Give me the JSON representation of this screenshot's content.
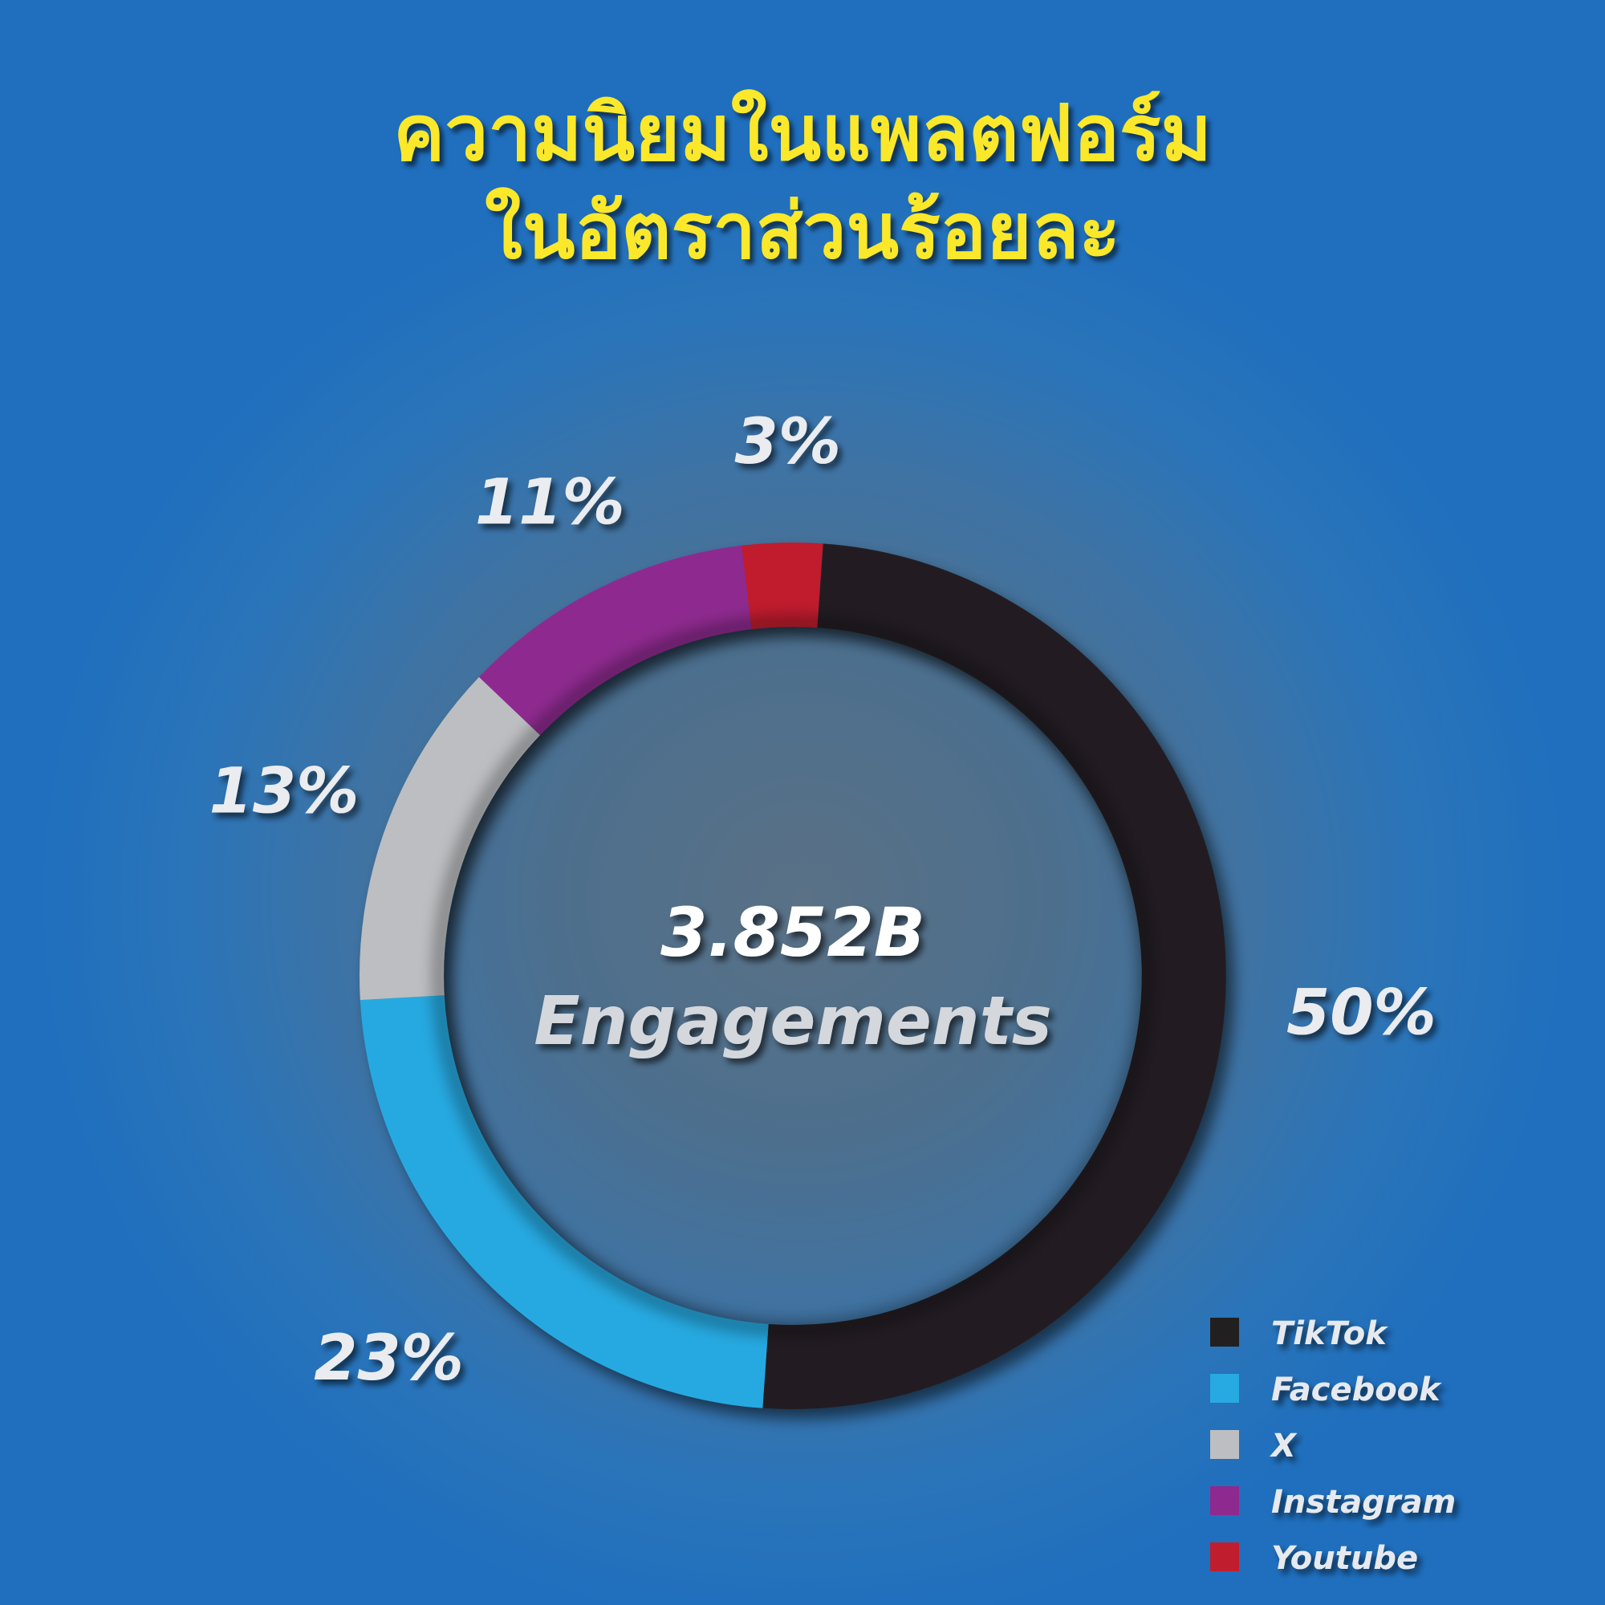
{
  "chart_data": {
    "type": "pie",
    "title_lines": [
      "ความนิยมในแพลตฟอร์ม",
      "ในอัตราส่วนร้อยละ"
    ],
    "center_value": "3.852B",
    "center_label": "Engagements",
    "slices": [
      {
        "name": "TikTok",
        "value": 50,
        "label": "50%",
        "color": "#221f20"
      },
      {
        "name": "Facebook",
        "value": 23,
        "label": "23%",
        "color": "#27a9e1"
      },
      {
        "name": "X",
        "value": 13,
        "label": "13%",
        "color": "#bcbec1"
      },
      {
        "name": "Instagram",
        "value": 11,
        "label": "11%",
        "color": "#8e298f"
      },
      {
        "name": "Youtube",
        "value": 3,
        "label": "3%",
        "color": "#c01e2e"
      }
    ],
    "donut": true,
    "legend_position": "bottom-right"
  }
}
